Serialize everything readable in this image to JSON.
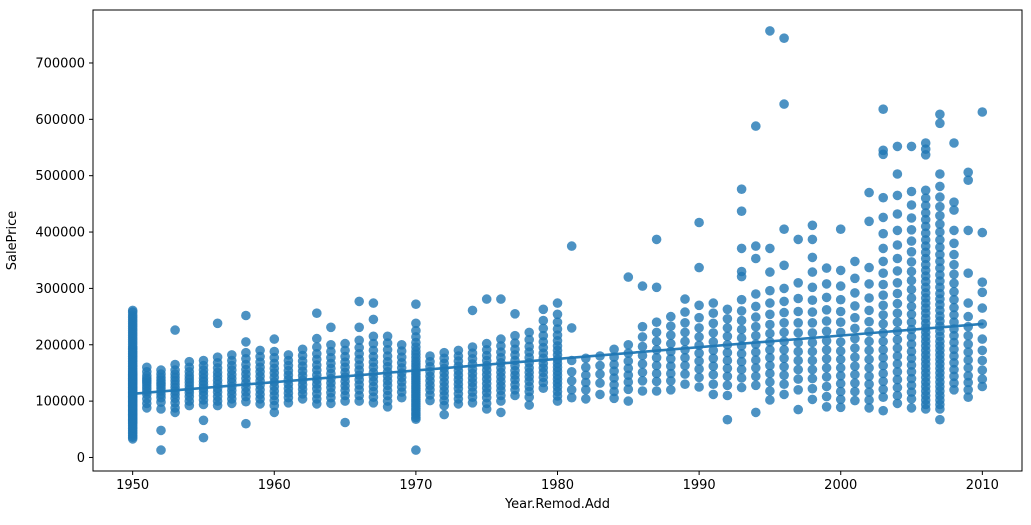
{
  "chart_data": {
    "type": "scatter",
    "title": "",
    "xlabel": "Year.Remod.Add",
    "ylabel": "SalePrice",
    "xlim": [
      1947.2,
      2012.8
    ],
    "ylim": [
      -24000,
      794000
    ],
    "xticks": [
      1950,
      1960,
      1970,
      1980,
      1990,
      2000,
      2010
    ],
    "yticks": [
      0,
      100000,
      200000,
      300000,
      400000,
      500000,
      600000,
      700000
    ],
    "grid": false,
    "legend": "none",
    "marker_color": "#1f77b4",
    "marker_opacity": 0.8,
    "trend_line": {
      "x": [
        1950,
        2010
      ],
      "y": [
        113000,
        237000
      ],
      "color": "#1f77b4"
    },
    "values_unit": "USD thousands (multiply by 1000 for dollars)",
    "points_by_year": {
      "1950": [
        261,
        258,
        253,
        249,
        245,
        241,
        237,
        233,
        229,
        225,
        221,
        217,
        213,
        209,
        205,
        201,
        197,
        194,
        191,
        188,
        185,
        182,
        179,
        176,
        173,
        170,
        167,
        164,
        161,
        158,
        155,
        152,
        150,
        148,
        146,
        144,
        142,
        140,
        138,
        136,
        134,
        132,
        130,
        128,
        126,
        124,
        122,
        120,
        118,
        116,
        114,
        112,
        110,
        108,
        106,
        104,
        102,
        100,
        98,
        96,
        94,
        92,
        90,
        88,
        86,
        84,
        82,
        80,
        78,
        76,
        74,
        72,
        70,
        68,
        66,
        64,
        62,
        60,
        57,
        54,
        51,
        48,
        45,
        42,
        39,
        36,
        33
      ],
      "1951": [
        160,
        152,
        145,
        140,
        136,
        132,
        127,
        122,
        117,
        112,
        104,
        96,
        88
      ],
      "1952": [
        155,
        148,
        142,
        137,
        132,
        128,
        123,
        118,
        112,
        106,
        98,
        86,
        48,
        13
      ],
      "1953": [
        226,
        165,
        155,
        148,
        142,
        136,
        130,
        124,
        118,
        112,
        105,
        97,
        88,
        80
      ],
      "1954": [
        170,
        160,
        152,
        145,
        139,
        133,
        127,
        121,
        115,
        108,
        100,
        92
      ],
      "1955": [
        172,
        163,
        155,
        148,
        141,
        135,
        129,
        123,
        117,
        110,
        102,
        94,
        66,
        35
      ],
      "1956": [
        238,
        178,
        168,
        159,
        151,
        144,
        137,
        130,
        123,
        116,
        108,
        100,
        92
      ],
      "1957": [
        182,
        172,
        163,
        155,
        147,
        140,
        133,
        126,
        119,
        112,
        104,
        96
      ],
      "1958": [
        252,
        205,
        186,
        175,
        165,
        156,
        148,
        140,
        132,
        124,
        116,
        108,
        99,
        60
      ],
      "1959": [
        190,
        179,
        169,
        160,
        152,
        144,
        136,
        128,
        120,
        112,
        104,
        95
      ],
      "1960": [
        210,
        188,
        177,
        167,
        158,
        150,
        142,
        134,
        126,
        118,
        110,
        101,
        92,
        80
      ],
      "1961": [
        182,
        172,
        163,
        154,
        146,
        138,
        130,
        122,
        114,
        106,
        97
      ],
      "1962": [
        192,
        181,
        171,
        162,
        153,
        145,
        137,
        129,
        121,
        113,
        104
      ],
      "1963": [
        256,
        211,
        196,
        184,
        174,
        164,
        155,
        146,
        138,
        130,
        122,
        113,
        104,
        95
      ],
      "1964": [
        231,
        200,
        188,
        177,
        167,
        158,
        149,
        140,
        132,
        124,
        115,
        106,
        96
      ],
      "1965": [
        202,
        190,
        179,
        169,
        160,
        151,
        143,
        135,
        127,
        119,
        110,
        100,
        62
      ],
      "1966": [
        277,
        231,
        208,
        195,
        184,
        174,
        164,
        155,
        146,
        138,
        129,
        120,
        110,
        100
      ],
      "1967": [
        274,
        245,
        215,
        202,
        190,
        179,
        169,
        160,
        151,
        143,
        135,
        126,
        117,
        107,
        97
      ],
      "1968": [
        215,
        203,
        191,
        180,
        170,
        161,
        152,
        144,
        136,
        128,
        119,
        110,
        100,
        90
      ],
      "1969": [
        200,
        189,
        178,
        168,
        159,
        150,
        142,
        134,
        125,
        116,
        106
      ],
      "1970": [
        272,
        238,
        225,
        214,
        204,
        196,
        189,
        183,
        177,
        171,
        166,
        161,
        156,
        151,
        147,
        143,
        139,
        135,
        131,
        127,
        123,
        119,
        115,
        111,
        107,
        103,
        99,
        95,
        91,
        87,
        83,
        79,
        75,
        71,
        68,
        13
      ],
      "1971": [
        180,
        170,
        161,
        152,
        144,
        136,
        128,
        120,
        111,
        101
      ],
      "1972": [
        186,
        176,
        167,
        158,
        150,
        142,
        134,
        126,
        118,
        110,
        101,
        92,
        76
      ],
      "1973": [
        190,
        180,
        171,
        162,
        154,
        146,
        138,
        130,
        122,
        113,
        104,
        95
      ],
      "1974": [
        261,
        196,
        185,
        175,
        166,
        157,
        149,
        141,
        133,
        125,
        116,
        107,
        97
      ],
      "1975": [
        281,
        202,
        191,
        181,
        172,
        163,
        155,
        147,
        139,
        131,
        123,
        115,
        106,
        96,
        86
      ],
      "1976": [
        281,
        210,
        198,
        187,
        177,
        168,
        159,
        151,
        143,
        135,
        127,
        119,
        110,
        100,
        80
      ],
      "1977": [
        255,
        216,
        203,
        192,
        182,
        172,
        163,
        154,
        146,
        138,
        129,
        120,
        110
      ],
      "1978": [
        222,
        209,
        197,
        187,
        177,
        168,
        159,
        151,
        143,
        135,
        126,
        117,
        107,
        93
      ],
      "1979": [
        263,
        243,
        229,
        216,
        205,
        195,
        185,
        176,
        167,
        159,
        151,
        142,
        133,
        123
      ],
      "1980": [
        274,
        254,
        240,
        228,
        217,
        207,
        198,
        190,
        182,
        174,
        167,
        160,
        153,
        146,
        139,
        132,
        125,
        117,
        109,
        100
      ],
      "1981": [
        375,
        230,
        172,
        152,
        136,
        120,
        106
      ],
      "1982": [
        176,
        160,
        146,
        133,
        120,
        104
      ],
      "1983": [
        180,
        163,
        148,
        132,
        112
      ],
      "1984": [
        192,
        178,
        165,
        153,
        141,
        129,
        117,
        105
      ],
      "1985": [
        320,
        200,
        185,
        171,
        158,
        146,
        134,
        121,
        100
      ],
      "1986": [
        304,
        232,
        214,
        197,
        181,
        166,
        151,
        136,
        118
      ],
      "1987": [
        387,
        302,
        240,
        222,
        206,
        191,
        177,
        163,
        149,
        135,
        118
      ],
      "1988": [
        250,
        233,
        217,
        202,
        188,
        175,
        162,
        149,
        136,
        120
      ],
      "1989": [
        281,
        258,
        239,
        222,
        206,
        191,
        177,
        163,
        148,
        130
      ],
      "1990": [
        417,
        337,
        270,
        248,
        230,
        214,
        199,
        185,
        171,
        157,
        142,
        125
      ],
      "1991": [
        274,
        256,
        238,
        221,
        205,
        190,
        176,
        162,
        147,
        130,
        112
      ],
      "1992": [
        263,
        246,
        230,
        215,
        200,
        186,
        172,
        158,
        144,
        128,
        110,
        67
      ],
      "1993": [
        476,
        437,
        371,
        330,
        321,
        280,
        260,
        243,
        227,
        212,
        198,
        184,
        170,
        156,
        141,
        124
      ],
      "1994": [
        588,
        375,
        353,
        290,
        268,
        249,
        232,
        216,
        201,
        187,
        173,
        159,
        144,
        128,
        80
      ],
      "1995": [
        757,
        371,
        329,
        296,
        274,
        254,
        236,
        220,
        205,
        191,
        177,
        163,
        149,
        134,
        118,
        102
      ],
      "1996": [
        744,
        627,
        405,
        341,
        300,
        277,
        257,
        239,
        222,
        206,
        191,
        176,
        161,
        146,
        130,
        112
      ],
      "1997": [
        387,
        310,
        282,
        259,
        239,
        221,
        204,
        188,
        172,
        156,
        139,
        120,
        85
      ],
      "1998": [
        412,
        387,
        355,
        329,
        302,
        279,
        258,
        239,
        221,
        204,
        188,
        172,
        156,
        140,
        122,
        103
      ],
      "1999": [
        336,
        308,
        284,
        262,
        242,
        224,
        207,
        191,
        175,
        159,
        143,
        126,
        108,
        90
      ],
      "2000": [
        405,
        332,
        304,
        280,
        259,
        240,
        222,
        205,
        189,
        174,
        159,
        145,
        131,
        117,
        103,
        89
      ],
      "2001": [
        348,
        318,
        292,
        269,
        248,
        229,
        211,
        194,
        178,
        162,
        147,
        132,
        117,
        101
      ],
      "2002": [
        470,
        419,
        337,
        308,
        283,
        261,
        241,
        223,
        206,
        190,
        174,
        159,
        144,
        130,
        116,
        102,
        88
      ],
      "2003": [
        618,
        545,
        538,
        461,
        426,
        397,
        371,
        348,
        327,
        307,
        288,
        270,
        253,
        237,
        221,
        206,
        191,
        177,
        163,
        149,
        135,
        121,
        107,
        83
      ],
      "2004": [
        552,
        503,
        465,
        432,
        403,
        377,
        353,
        331,
        310,
        291,
        273,
        256,
        240,
        224,
        209,
        194,
        180,
        166,
        152,
        138,
        124,
        110,
        96
      ],
      "2005": [
        552,
        472,
        448,
        425,
        404,
        384,
        365,
        347,
        330,
        314,
        298,
        283,
        268,
        254,
        240,
        227,
        214,
        201,
        188,
        176,
        164,
        152,
        140,
        128,
        116,
        104,
        88
      ],
      "2006": [
        558,
        547,
        537,
        474,
        460,
        447,
        434,
        422,
        410,
        398,
        386,
        375,
        364,
        353,
        342,
        332,
        322,
        312,
        302,
        292,
        283,
        274,
        265,
        256,
        247,
        238,
        230,
        222,
        214,
        206,
        198,
        190,
        182,
        174,
        166,
        158,
        150,
        142,
        134,
        126,
        118,
        110,
        102,
        94,
        86
      ],
      "2007": [
        609,
        593,
        503,
        481,
        462,
        445,
        429,
        414,
        400,
        386,
        373,
        360,
        348,
        336,
        324,
        313,
        302,
        291,
        281,
        271,
        261,
        251,
        242,
        233,
        224,
        215,
        206,
        198,
        190,
        182,
        174,
        166,
        158,
        150,
        142,
        134,
        126,
        118,
        110,
        102,
        94,
        86,
        67
      ],
      "2008": [
        558,
        453,
        439,
        403,
        380,
        360,
        342,
        325,
        309,
        294,
        280,
        266,
        253,
        240,
        228,
        216,
        204,
        192,
        180,
        168,
        156,
        144,
        132,
        120
      ],
      "2009": [
        506,
        492,
        403,
        327,
        274,
        250,
        232,
        216,
        201,
        187,
        173,
        159,
        145,
        133,
        120,
        107
      ],
      "2010": [
        613,
        399,
        311,
        293,
        265,
        237,
        210,
        190,
        172,
        155,
        139,
        126
      ]
    }
  }
}
